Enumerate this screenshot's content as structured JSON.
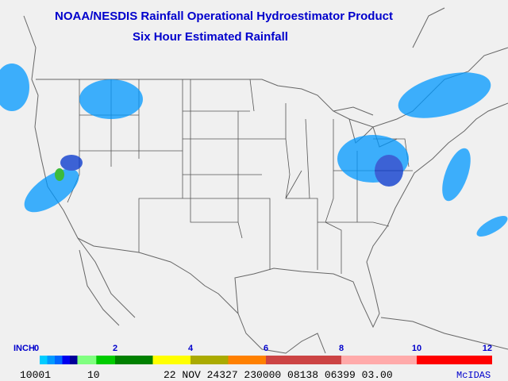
{
  "header": {
    "title": "NOAA/NESDIS Rainfall Operational Hydroestimator Product",
    "subtitle": "Six Hour Estimated Rainfall"
  },
  "legend": {
    "unit": "INCH",
    "range": [
      0,
      12
    ],
    "ticks": [
      0,
      2,
      4,
      6,
      8,
      10,
      12
    ],
    "bands": [
      {
        "from": 0,
        "to": 0.2,
        "color": "#00ccff"
      },
      {
        "from": 0.2,
        "to": 0.4,
        "color": "#0099ff"
      },
      {
        "from": 0.4,
        "to": 0.6,
        "color": "#0066ff"
      },
      {
        "from": 0.6,
        "to": 0.8,
        "color": "#0000ee"
      },
      {
        "from": 0.8,
        "to": 1,
        "color": "#000099"
      },
      {
        "from": 1,
        "to": 1.5,
        "color": "#80ff80"
      },
      {
        "from": 1.5,
        "to": 2,
        "color": "#00cc00"
      },
      {
        "from": 2,
        "to": 3,
        "color": "#008000"
      },
      {
        "from": 3,
        "to": 4,
        "color": "#ffff00"
      },
      {
        "from": 4,
        "to": 5,
        "color": "#aaaa00"
      },
      {
        "from": 5,
        "to": 6,
        "color": "#ff8000"
      },
      {
        "from": 6,
        "to": 8,
        "color": "#cc4444"
      },
      {
        "from": 8,
        "to": 10,
        "color": "#ffaaaa"
      },
      {
        "from": 10,
        "to": 12,
        "color": "#ff0000"
      }
    ]
  },
  "footer": {
    "fields": [
      "10001",
      "10",
      "22 NOV 24327 230000 08138 06399 03.00"
    ],
    "brand": "McIDAS"
  }
}
